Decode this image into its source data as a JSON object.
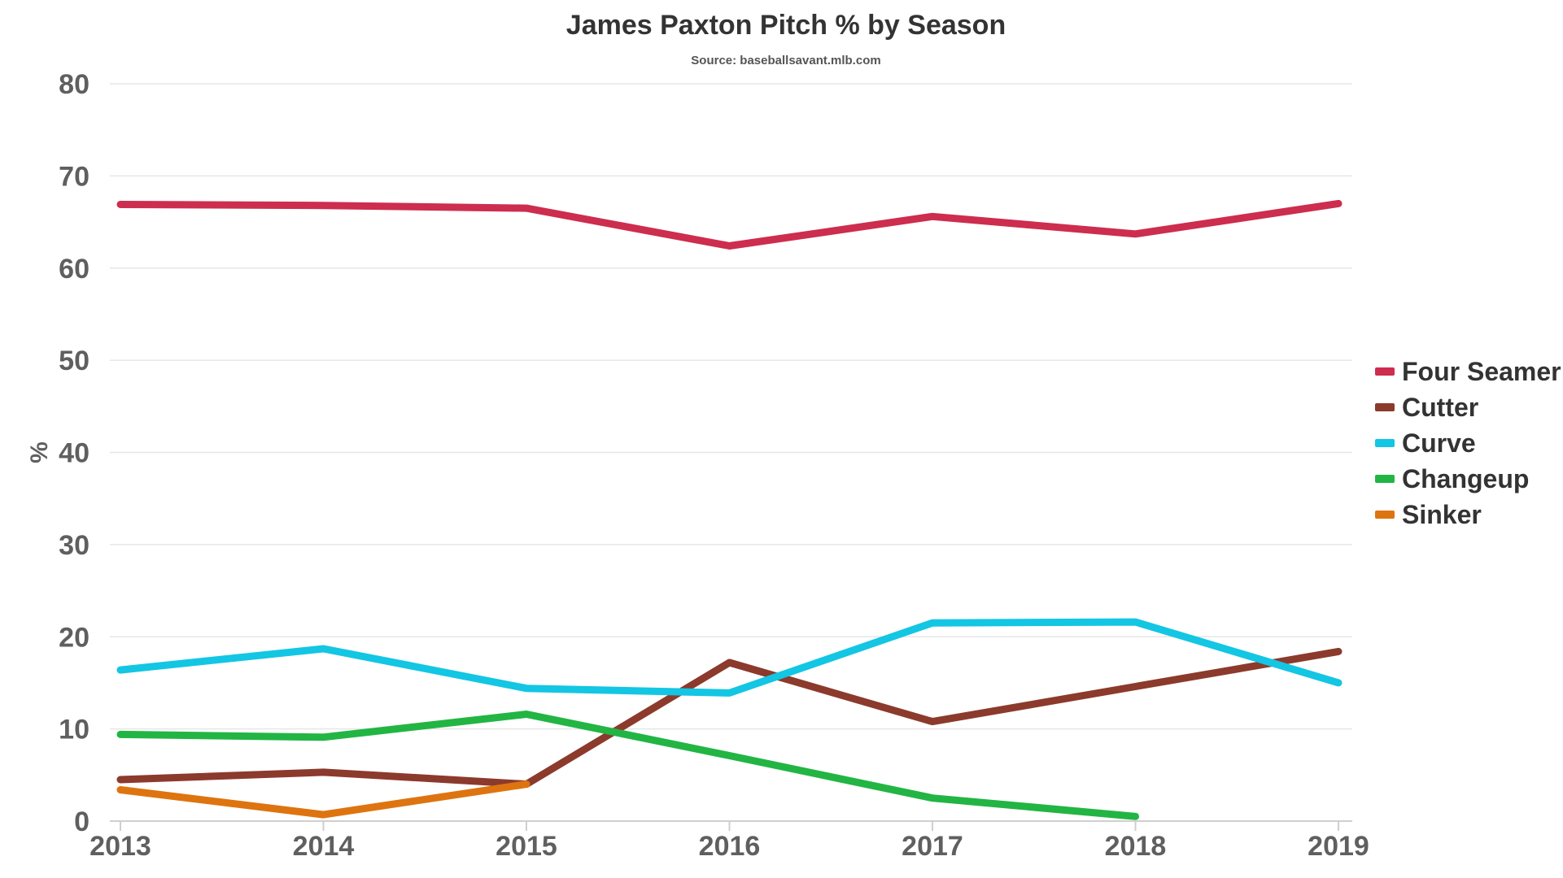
{
  "chart_data": {
    "type": "line",
    "title": "James Paxton Pitch % by Season",
    "subtitle": "Source: baseballsavant.mlb.com",
    "xlabel": "",
    "ylabel": "%",
    "categories": [
      "2013",
      "2014",
      "2015",
      "2016",
      "2017",
      "2018",
      "2019"
    ],
    "ylim": [
      0,
      80
    ],
    "yticks": [
      "0",
      "10",
      "20",
      "30",
      "40",
      "50",
      "60",
      "70",
      "80"
    ],
    "grid": true,
    "legend_position": "right",
    "series": [
      {
        "name": "Four Seamer",
        "color": "#cd2d4e",
        "values": [
          66.9,
          66.8,
          66.5,
          62.4,
          65.6,
          63.7,
          67.0
        ]
      },
      {
        "name": "Cutter",
        "color": "#8b3a2c",
        "values": [
          4.5,
          5.3,
          4.0,
          17.2,
          10.8,
          14.6,
          18.4
        ]
      },
      {
        "name": "Curve",
        "color": "#13c6e3",
        "values": [
          16.4,
          18.7,
          14.4,
          13.9,
          21.5,
          21.6,
          15.0
        ]
      },
      {
        "name": "Changeup",
        "color": "#22b543",
        "values": [
          9.4,
          9.1,
          11.6,
          7.1,
          2.5,
          0.5,
          null
        ]
      },
      {
        "name": "Sinker",
        "color": "#de7410",
        "values": [
          3.4,
          0.7,
          4.0,
          null,
          null,
          null,
          null
        ]
      }
    ]
  }
}
